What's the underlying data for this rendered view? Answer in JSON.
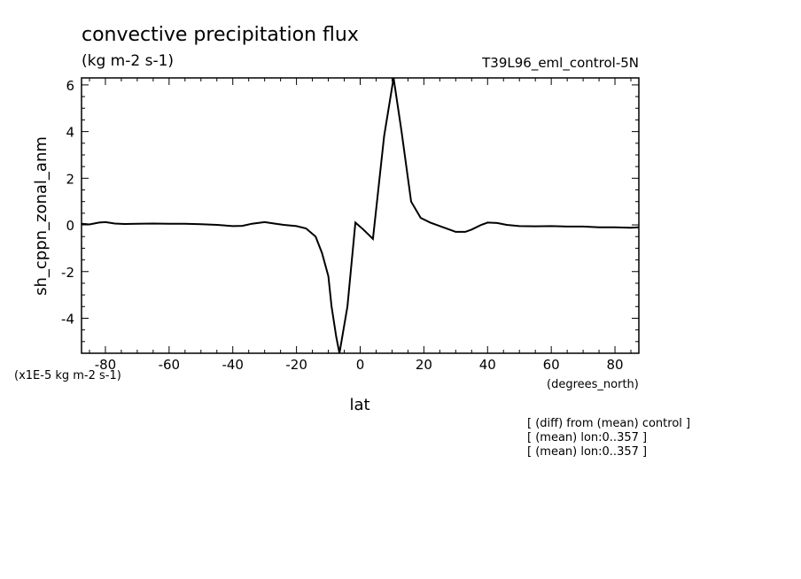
{
  "chart_data": {
    "type": "line",
    "title": "convective precipitation flux",
    "units_label": "(kg m-2 s-1)",
    "run_label": "T39L96_eml_control-5N",
    "ylabel": "sh_cppn_zonal_anm",
    "xlabel": "lat",
    "x_units": "(degrees_north)",
    "y_scale_note": "(x1E-5 kg m-2 s-1)",
    "notes": [
      "[ (diff) from (mean) control ]",
      "[ (mean) lon:0..357 ]",
      "[ (mean) lon:0..357 ]"
    ],
    "xlim": [
      -87.5,
      87.5
    ],
    "ylim": [
      -5.5,
      6.3
    ],
    "x_ticks": [
      -80,
      -60,
      -40,
      -20,
      0,
      20,
      40,
      60,
      80
    ],
    "y_ticks": [
      -4,
      -2,
      0,
      2,
      4,
      6
    ],
    "series": [
      {
        "x": [
          -87.5,
          -85,
          -82,
          -80,
          -77,
          -74,
          -70,
          -65,
          -60,
          -55,
          -50,
          -45,
          -40,
          -37,
          -34,
          -30,
          -27,
          -24,
          -20,
          -17,
          -14,
          -12,
          -10,
          -9,
          -7.5,
          -6.5,
          -4,
          -1.5,
          1,
          4,
          7.5,
          10.5,
          13,
          16,
          19,
          22,
          26,
          30,
          33,
          35,
          38,
          40,
          43,
          46,
          50,
          55,
          60,
          65,
          70,
          75,
          80,
          85,
          87.5
        ],
        "y": [
          0.05,
          0.02,
          0.1,
          0.12,
          0.06,
          0.04,
          0.05,
          0.06,
          0.05,
          0.05,
          0.03,
          0.0,
          -0.05,
          -0.04,
          0.05,
          0.12,
          0.06,
          0.0,
          -0.05,
          -0.15,
          -0.5,
          -1.2,
          -2.2,
          -3.5,
          -4.8,
          -5.5,
          -3.5,
          0.1,
          -0.2,
          -0.6,
          3.8,
          6.3,
          4.0,
          1.0,
          0.3,
          0.1,
          -0.1,
          -0.3,
          -0.3,
          -0.2,
          0.0,
          0.1,
          0.08,
          0.0,
          -0.05,
          -0.06,
          -0.05,
          -0.07,
          -0.07,
          -0.1,
          -0.1,
          -0.12,
          -0.1
        ]
      }
    ]
  }
}
